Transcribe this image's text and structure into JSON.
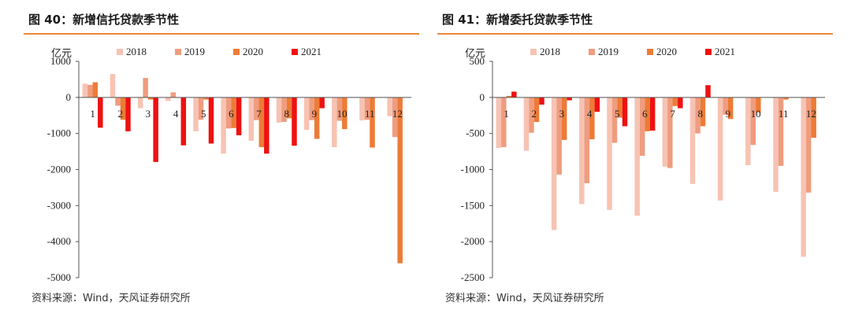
{
  "colors": {
    "accent_rule": "#e8883a"
  },
  "figures": [
    {
      "title": "图 40：新增信托贷款季节性",
      "source": "资料来源：Wind，天风证券研究所",
      "chart_data": {
        "type": "bar",
        "unit_label": "亿元",
        "categories": [
          "1",
          "2",
          "3",
          "4",
          "5",
          "6",
          "7",
          "8",
          "9",
          "10",
          "11",
          "12"
        ],
        "ylim": [
          -5000,
          1000
        ],
        "yticks": [
          1000,
          0,
          -1000,
          -2000,
          -3000,
          -4000,
          -5000
        ],
        "ytick_labels": [
          "1000",
          "0",
          "-1000",
          "-2000",
          "-3000",
          "-4000",
          "-5000"
        ],
        "legend_position": "top",
        "series": [
          {
            "name": "2018",
            "color": "#f7c3b3",
            "values": [
              380,
              650,
              -300,
              -100,
              -940,
              -1560,
              -1200,
              -700,
              -900,
              -1380,
              -640,
              -520
            ]
          },
          {
            "name": "2019",
            "color": "#ef9c7f",
            "values": [
              350,
              -230,
              540,
              140,
              -620,
              -860,
              -630,
              -680,
              -630,
              -650,
              -620,
              -1100
            ]
          },
          {
            "name": "2020",
            "color": "#ed7b36",
            "values": [
              420,
              -620,
              -60,
              -10,
              -60,
              -850,
              -1380,
              -580,
              -1150,
              -880,
              -1390,
              -4600
            ]
          },
          {
            "name": "2021",
            "color": "#ee1111",
            "values": [
              -840,
              -940,
              -1790,
              -1330,
              -1280,
              -1050,
              -1560,
              -1340,
              -300,
              null,
              null,
              null
            ]
          }
        ]
      }
    },
    {
      "title": "图 41：新增委托贷款季节性",
      "source": "资料来源：Wind，天风证券研究所",
      "chart_data": {
        "type": "bar",
        "unit_label": "亿元",
        "categories": [
          "1",
          "2",
          "3",
          "4",
          "5",
          "6",
          "7",
          "8",
          "9",
          "10",
          "11",
          "12"
        ],
        "ylim": [
          -2500,
          500
        ],
        "yticks": [
          500,
          0,
          -500,
          -1000,
          -1500,
          -2000,
          -2500
        ],
        "ytick_labels": [
          "500",
          "0",
          "-500",
          "-1000",
          "-1500",
          "-2000",
          "-2500"
        ],
        "legend_position": "top",
        "series": [
          {
            "name": "2018",
            "color": "#f7c3b3",
            "values": [
              -700,
              -740,
              -1840,
              -1480,
              -1560,
              -1640,
              -960,
              -1200,
              -1430,
              -940,
              -1310,
              -2210
            ]
          },
          {
            "name": "2019",
            "color": "#ef9c7f",
            "values": [
              -690,
              -490,
              -1070,
              -1190,
              -630,
              -810,
              -980,
              -500,
              -240,
              -660,
              -950,
              -1320
            ]
          },
          {
            "name": "2020",
            "color": "#ed7b36",
            "values": [
              20,
              -340,
              -590,
              -580,
              -280,
              -470,
              -120,
              -400,
              -300,
              -210,
              -30,
              -560
            ]
          },
          {
            "name": "2021",
            "color": "#ee1111",
            "values": [
              80,
              -100,
              -40,
              -200,
              -400,
              -460,
              -150,
              170,
              null,
              null,
              null,
              null
            ]
          }
        ]
      }
    }
  ]
}
